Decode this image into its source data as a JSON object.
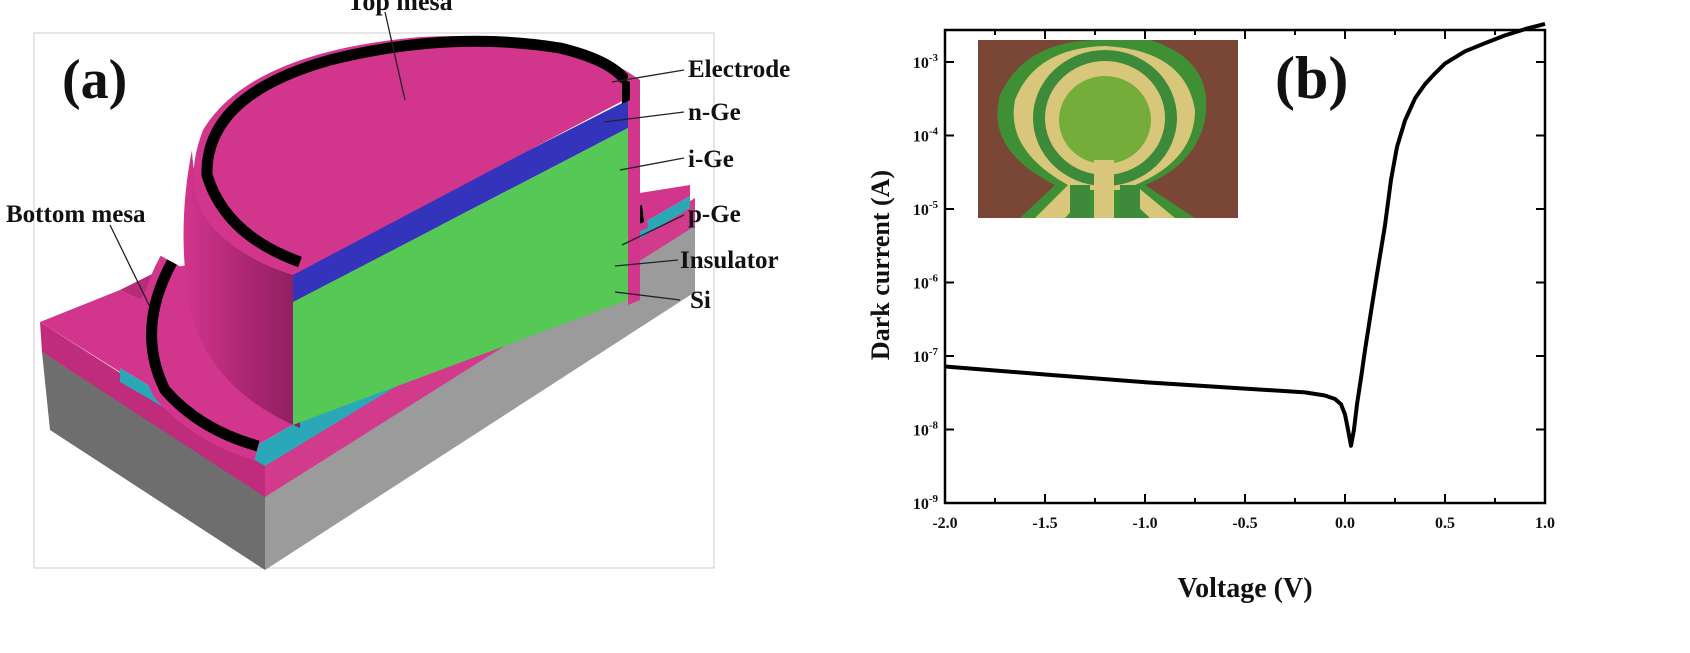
{
  "panel_a": {
    "label": "(a)",
    "layers": {
      "top_mesa": "Top mesa",
      "bottom_mesa": "Bottom mesa",
      "electrode": "Electrode",
      "n_ge": "n-Ge",
      "i_ge": "i-Ge",
      "p_ge": "p-Ge",
      "insulator": "Insulator",
      "si": "Si"
    },
    "colors": {
      "magenta": "#d2358c",
      "blue": "#3333bb",
      "green": "#55c855",
      "teal": "#2aa8b8",
      "gray": "#9a9a9a",
      "electrode": "#000000"
    }
  },
  "panel_b": {
    "label": "(b)"
  },
  "chart_data": {
    "type": "line",
    "title": "",
    "xlabel": "Voltage (V)",
    "ylabel": "Dark current (A)",
    "xlim": [
      -2.0,
      1.0
    ],
    "ylim": [
      1e-09,
      0.0036
    ],
    "yscale": "log",
    "xticks": [
      -2.0,
      -1.5,
      -1.0,
      -0.5,
      0.0,
      0.5,
      1.0
    ],
    "xticklabels": [
      "-2.0",
      "-1.5",
      "-1.0",
      "-0.5",
      "0.0",
      "0.5",
      "1.0"
    ],
    "ytick_base": "10",
    "ytick_exponents": [
      "-9",
      "-8",
      "-7",
      "-6",
      "-5",
      "-4",
      "-3"
    ],
    "grid": false,
    "series": [
      {
        "name": "Dark current",
        "color": "#000000",
        "x": [
          -2.0,
          -1.5,
          -1.0,
          -0.5,
          -0.2,
          -0.1,
          -0.05,
          -0.02,
          0.0,
          0.015,
          0.03,
          0.045,
          0.06,
          0.08,
          0.1,
          0.13,
          0.16,
          0.2,
          0.23,
          0.26,
          0.3,
          0.35,
          0.4,
          0.45,
          0.5,
          0.6,
          0.7,
          0.8,
          0.9,
          1.0
        ],
        "y": [
          7.2e-08,
          5.6e-08,
          4.4e-08,
          3.6e-08,
          3.2e-08,
          2.9e-08,
          2.6e-08,
          2.2e-08,
          1.6e-08,
          1e-08,
          6e-09,
          1e-08,
          2.2e-08,
          5e-08,
          1.2e-07,
          4e-07,
          1.3e-06,
          6e-06,
          2.5e-05,
          7e-05,
          0.00016,
          0.00032,
          0.0005,
          0.0007,
          0.00095,
          0.0014,
          0.0018,
          0.0023,
          0.0028,
          0.0033
        ]
      }
    ]
  }
}
